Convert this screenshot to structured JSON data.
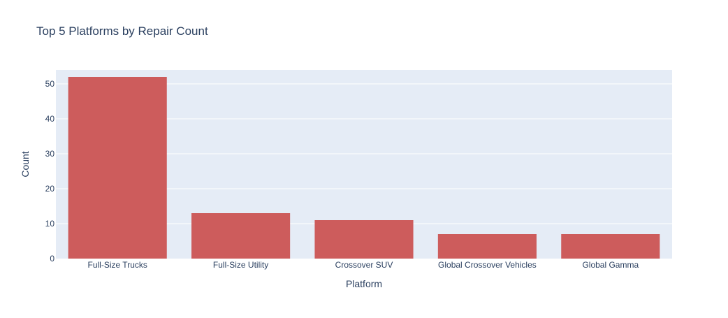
{
  "chart_data": {
    "type": "bar",
    "title": "Top 5 Platforms by Repair Count",
    "xlabel": "Platform",
    "ylabel": "Count",
    "categories": [
      "Full-Size Trucks",
      "Full-Size Utility",
      "Crossover SUV",
      "Global Crossover Vehicles",
      "Global Gamma"
    ],
    "values": [
      52,
      13,
      11,
      7,
      7
    ],
    "ylim": [
      0,
      54
    ],
    "yticks": [
      0,
      10,
      20,
      30,
      40,
      50
    ],
    "grid": true,
    "legend": "none",
    "colors": {
      "bar": "#cd5c5c",
      "plot_background": "#e5ecf6",
      "gridline": "#ffffff",
      "text": "#2a3f5f",
      "tick_text": "#2a3f5f"
    }
  }
}
